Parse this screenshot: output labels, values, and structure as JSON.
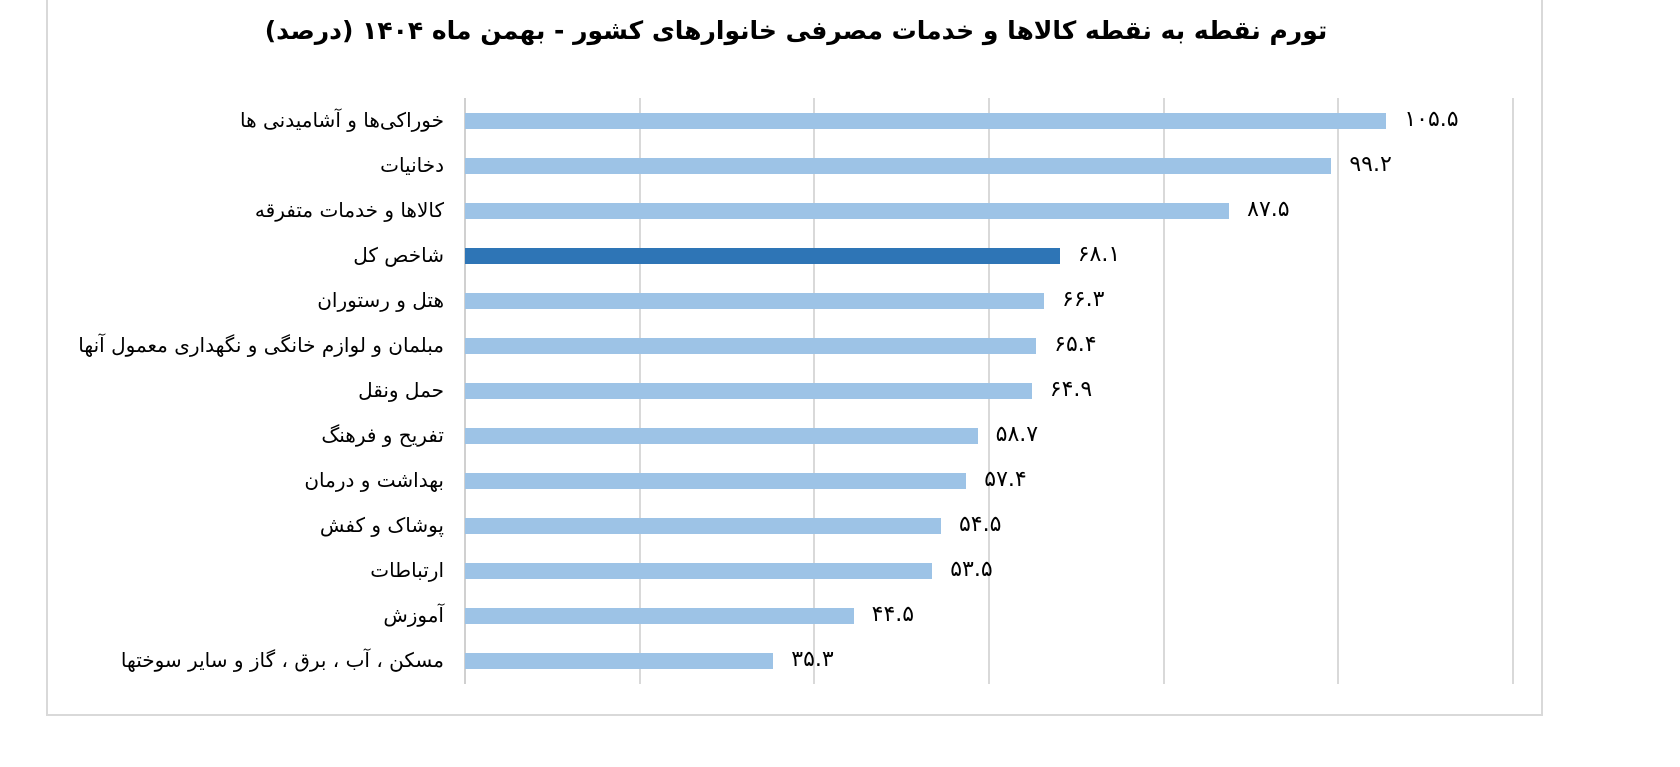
{
  "chart_data": {
    "type": "bar",
    "orientation": "horizontal",
    "title": "تورم نقطه به نقطه کالاها و خدمات مصرفی خانوارهای کشور - بهمن ماه ۱۴۰۴ (درصد)",
    "xlabel": "",
    "ylabel": "",
    "xlim": [
      0,
      120
    ],
    "grid": true,
    "gridline_step": 20,
    "tick_labels_visible": false,
    "legend": null,
    "colors": {
      "bar": "#9dc3e6",
      "highlight": "#2e75b6",
      "grid": "#d9d9d9"
    },
    "categories": [
      "خوراکی‌ها و آشامیدنی ها",
      "دخانیات",
      "کالاها و خدمات متفرقه",
      "شاخص کل",
      "هتل و رستوران",
      "مبلمان و لوازم خانگی و نگهداری معمول آنها",
      "حمل ونقل",
      "تفریح و فرهنگ",
      "بهداشت و درمان",
      "پوشاک و کفش",
      "ارتباطات",
      "آموزش",
      "مسکن ، آب ، برق ، گاز و سایر سوختها"
    ],
    "values": [
      105.5,
      99.2,
      87.5,
      68.1,
      66.3,
      65.4,
      64.9,
      58.7,
      57.4,
      54.5,
      53.5,
      44.5,
      35.3
    ],
    "value_labels": [
      "۱۰۵.۵",
      "۹۹.۲",
      "۸۷.۵",
      "۶۸.۱",
      "۶۶.۳",
      "۶۵.۴",
      "۶۴.۹",
      "۵۸.۷",
      "۵۷.۴",
      "۵۴.۵",
      "۵۳.۵",
      "۴۴.۵",
      "۳۵.۳"
    ],
    "highlighted_category": "شاخص کل"
  }
}
